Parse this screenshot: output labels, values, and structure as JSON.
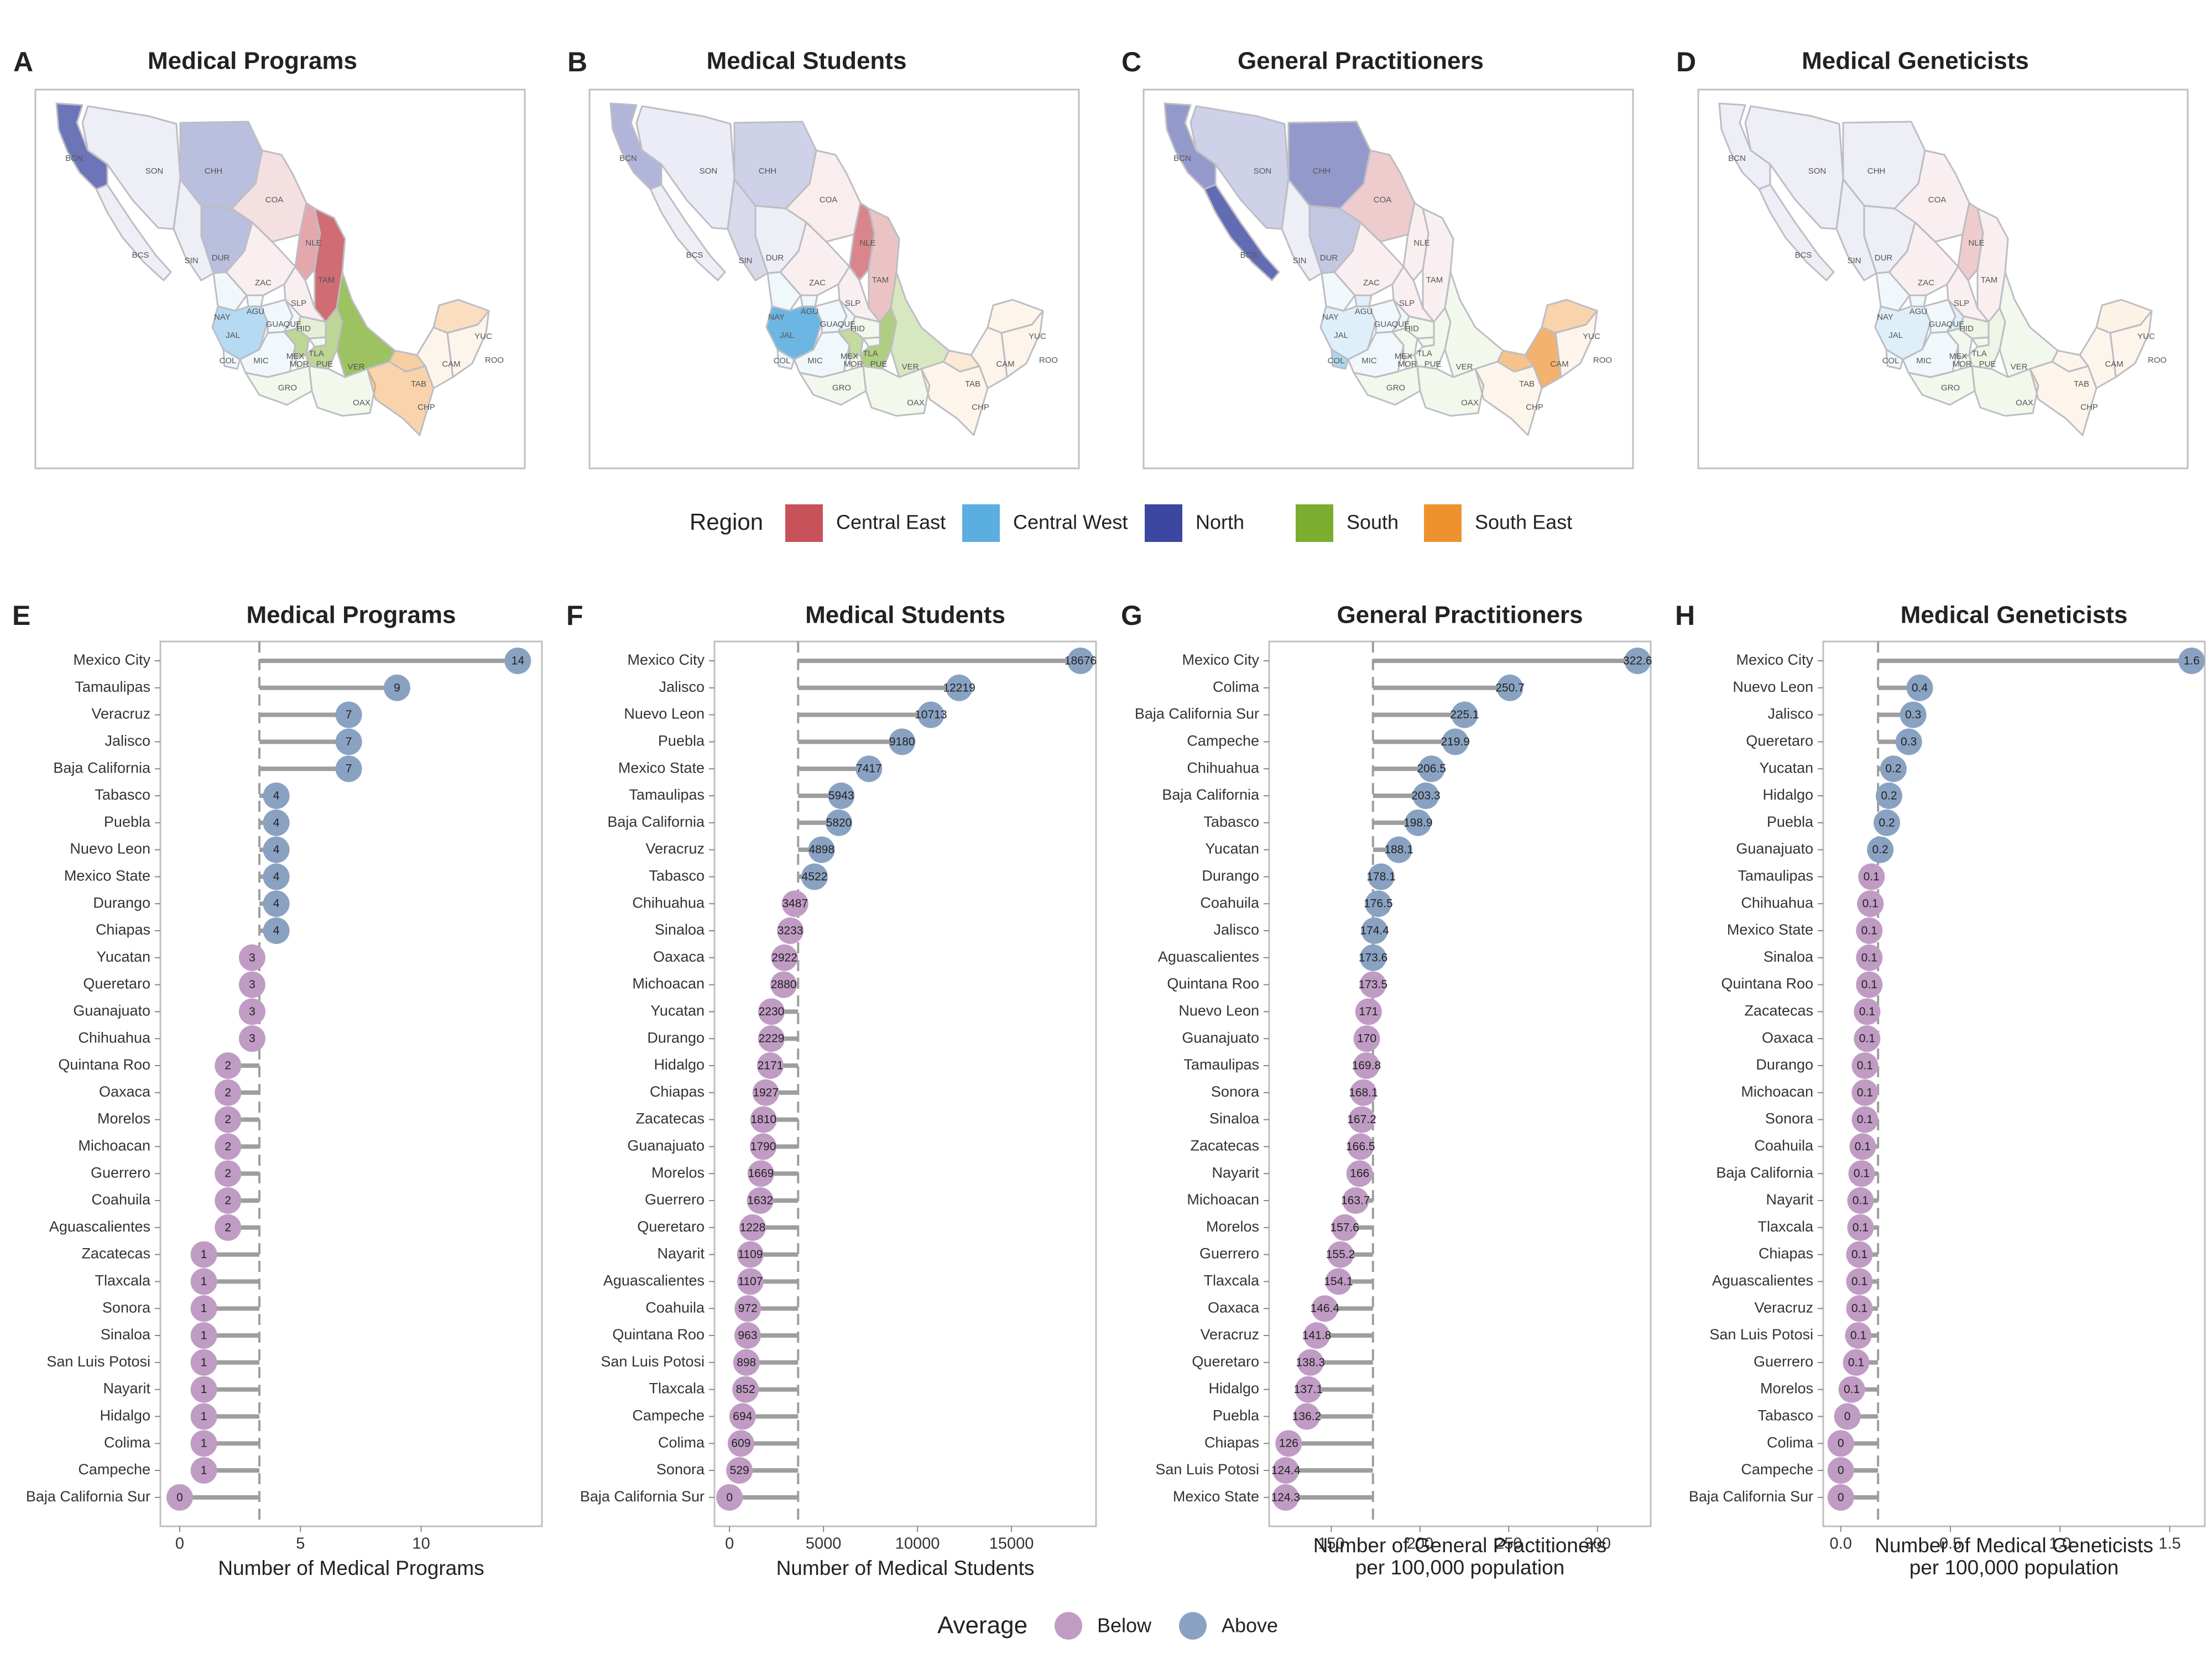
{
  "colors": {
    "central_east": "#C8525A",
    "central_west": "#5BAEE0",
    "north": "#3B47A0",
    "south": "#7BAE2E",
    "south_east": "#EE922F",
    "below": "#C09CC4",
    "above": "#8AA2C2",
    "stem": "#9E9E9E",
    "panel_border": "#BFBFBF"
  },
  "maps": [
    {
      "letter": "A",
      "title": "Medical Programs"
    },
    {
      "letter": "B",
      "title": "Medical Students"
    },
    {
      "letter": "C",
      "title": "General Practitioners"
    },
    {
      "letter": "D",
      "title": "Medical Geneticists"
    }
  ],
  "state_labels": [
    "BCN",
    "SON",
    "CHH",
    "COA",
    "NLE",
    "TAM",
    "BCS",
    "SIN",
    "DUR",
    "ZAC",
    "SLP",
    "NAY",
    "AGU",
    "JAL",
    "GUA",
    "QUE",
    "HID",
    "COL",
    "MIC",
    "MEX",
    "TLA",
    "MOR",
    "PUE",
    "VER",
    "GRO",
    "OAX",
    "TAB",
    "CAM",
    "YUC",
    "ROO",
    "CHP"
  ],
  "region_legend": {
    "title": "Region",
    "items": [
      {
        "label": "Central East",
        "color": "#C8525A"
      },
      {
        "label": "Central West",
        "color": "#5BAEE0"
      },
      {
        "label": "North",
        "color": "#3B47A0"
      },
      {
        "label": "South",
        "color": "#7BAE2E"
      },
      {
        "label": "South East",
        "color": "#EE922F"
      }
    ]
  },
  "average_legend": {
    "title": "Average",
    "items": [
      {
        "label": "Below",
        "color": "#C09CC4"
      },
      {
        "label": "Above",
        "color": "#8AA2C2"
      }
    ]
  },
  "chart_data": [
    {
      "type": "lollipop",
      "letter": "E",
      "title": "Medical Programs",
      "xlabel": [
        "Number of Medical Programs"
      ],
      "xlim": [
        -0.8,
        15
      ],
      "xticks": [
        0,
        5,
        10
      ],
      "average": 3.3,
      "categories": [
        "Mexico City",
        "Tamaulipas",
        "Veracruz",
        "Jalisco",
        "Baja California",
        "Tabasco",
        "Puebla",
        "Nuevo Leon",
        "Mexico State",
        "Durango",
        "Chiapas",
        "Yucatan",
        "Queretaro",
        "Guanajuato",
        "Chihuahua",
        "Quintana Roo",
        "Oaxaca",
        "Morelos",
        "Michoacan",
        "Guerrero",
        "Coahuila",
        "Aguascalientes",
        "Zacatecas",
        "Tlaxcala",
        "Sonora",
        "Sinaloa",
        "San Luis Potosi",
        "Nayarit",
        "Hidalgo",
        "Colima",
        "Campeche",
        "Baja California Sur"
      ],
      "values": [
        14,
        9,
        7,
        7,
        7,
        4,
        4,
        4,
        4,
        4,
        4,
        3,
        3,
        3,
        3,
        2,
        2,
        2,
        2,
        2,
        2,
        2,
        1,
        1,
        1,
        1,
        1,
        1,
        1,
        1,
        1,
        0
      ],
      "labels": [
        "14",
        "9",
        "7",
        "7",
        "7",
        "4",
        "4",
        "4",
        "4",
        "4",
        "4",
        "3",
        "3",
        "3",
        "3",
        "2",
        "2",
        "2",
        "2",
        "2",
        "2",
        "2",
        "1",
        "1",
        "1",
        "1",
        "1",
        "1",
        "1",
        "1",
        "1",
        "0"
      ]
    },
    {
      "type": "lollipop",
      "letter": "F",
      "title": "Medical Students",
      "xlabel": [
        "Number of Medical Students"
      ],
      "xlim": [
        -800,
        19500
      ],
      "xticks": [
        0,
        5000,
        10000,
        15000
      ],
      "average": 3650,
      "categories": [
        "Mexico City",
        "Jalisco",
        "Nuevo Leon",
        "Puebla",
        "Mexico State",
        "Tamaulipas",
        "Baja California",
        "Veracruz",
        "Tabasco",
        "Chihuahua",
        "Sinaloa",
        "Oaxaca",
        "Michoacan",
        "Yucatan",
        "Durango",
        "Hidalgo",
        "Chiapas",
        "Zacatecas",
        "Guanajuato",
        "Morelos",
        "Guerrero",
        "Queretaro",
        "Nayarit",
        "Aguascalientes",
        "Coahuila",
        "Quintana Roo",
        "San Luis Potosi",
        "Tlaxcala",
        "Campeche",
        "Colima",
        "Sonora",
        "Baja California Sur"
      ],
      "values": [
        18676,
        12219,
        10713,
        9180,
        7417,
        5943,
        5820,
        4898,
        4522,
        3487,
        3233,
        2922,
        2880,
        2230,
        2229,
        2171,
        1927,
        1810,
        1790,
        1669,
        1632,
        1228,
        1109,
        1107,
        972,
        963,
        898,
        852,
        694,
        609,
        529,
        0
      ],
      "labels": [
        "18676",
        "12219",
        "10713",
        "9180",
        "7417",
        "5943",
        "5820",
        "4898",
        "4522",
        "3487",
        "3233",
        "2922",
        "2880",
        "2230",
        "2229",
        "2171",
        "1927",
        "1810",
        "1790",
        "1669",
        "1632",
        "1228",
        "1109",
        "1107",
        "972",
        "963",
        "898",
        "852",
        "694",
        "609",
        "529",
        "0"
      ]
    },
    {
      "type": "lollipop",
      "letter": "G",
      "title": "General Practitioners",
      "xlabel": [
        "Number of General Practitioners",
        "per 100,000 population"
      ],
      "xlim": [
        115,
        330
      ],
      "xticks": [
        150,
        200,
        250,
        300
      ],
      "average": 173.5,
      "categories": [
        "Mexico City",
        "Colima",
        "Baja California Sur",
        "Campeche",
        "Chihuahua",
        "Baja California",
        "Tabasco",
        "Yucatan",
        "Durango",
        "Coahuila",
        "Jalisco",
        "Aguascalientes",
        "Quintana Roo",
        "Nuevo Leon",
        "Guanajuato",
        "Tamaulipas",
        "Sonora",
        "Sinaloa",
        "Zacatecas",
        "Nayarit",
        "Michoacan",
        "Morelos",
        "Guerrero",
        "Tlaxcala",
        "Oaxaca",
        "Veracruz",
        "Queretaro",
        "Hidalgo",
        "Puebla",
        "Chiapas",
        "San Luis Potosi",
        "Mexico State"
      ],
      "values": [
        322.6,
        250.7,
        225.1,
        219.9,
        206.5,
        203.3,
        198.9,
        188.1,
        178.1,
        176.5,
        174.4,
        173.6,
        173.5,
        171,
        170,
        169.8,
        168.1,
        167.2,
        166.5,
        166,
        163.7,
        157.6,
        155.2,
        154.1,
        146.4,
        141.8,
        138.3,
        137.1,
        136.2,
        126,
        124.4,
        124.3
      ],
      "labels": [
        "322.6",
        "250.7",
        "225.1",
        "219.9",
        "206.5",
        "203.3",
        "198.9",
        "188.1",
        "178.1",
        "176.5",
        "174.4",
        "173.6",
        "173.5",
        "171",
        "170",
        "169.8",
        "168.1",
        "167.2",
        "166.5",
        "166",
        "163.7",
        "157.6",
        "155.2",
        "154.1",
        "146.4",
        "141.8",
        "138.3",
        "137.1",
        "136.2",
        "126",
        "124.4",
        "124.3"
      ]
    },
    {
      "type": "lollipop",
      "letter": "H",
      "title": "Medical Geneticists",
      "xlabel": [
        "Number of Medical Geneticists",
        "per 100,000 population"
      ],
      "xlim": [
        -0.08,
        1.66
      ],
      "xticks": [
        0,
        0.5,
        1,
        1.5
      ],
      "xtick_labels": [
        "0.0",
        "0.5",
        "1.0",
        "1.5"
      ],
      "average": 0.17,
      "categories": [
        "Mexico City",
        "Nuevo Leon",
        "Jalisco",
        "Queretaro",
        "Yucatan",
        "Hidalgo",
        "Puebla",
        "Guanajuato",
        "Tamaulipas",
        "Chihuahua",
        "Mexico State",
        "Sinaloa",
        "Quintana Roo",
        "Zacatecas",
        "Oaxaca",
        "Durango",
        "Michoacan",
        "Sonora",
        "Coahuila",
        "Baja California",
        "Nayarit",
        "Tlaxcala",
        "Chiapas",
        "Aguascalientes",
        "Veracruz",
        "San Luis Potosi",
        "Guerrero",
        "Morelos",
        "Tabasco",
        "Colima",
        "Campeche",
        "Baja California Sur"
      ],
      "values": [
        1.6,
        0.36,
        0.33,
        0.31,
        0.24,
        0.22,
        0.21,
        0.18,
        0.14,
        0.135,
        0.13,
        0.13,
        0.13,
        0.12,
        0.12,
        0.11,
        0.11,
        0.11,
        0.1,
        0.095,
        0.09,
        0.09,
        0.085,
        0.085,
        0.085,
        0.08,
        0.07,
        0.05,
        0.03,
        0,
        0,
        0
      ],
      "labels": [
        "1.6",
        "0.4",
        "0.3",
        "0.3",
        "0.2",
        "0.2",
        "0.2",
        "0.2",
        "0.1",
        "0.1",
        "0.1",
        "0.1",
        "0.1",
        "0.1",
        "0.1",
        "0.1",
        "0.1",
        "0.1",
        "0.1",
        "0.1",
        "0.1",
        "0.1",
        "0.1",
        "0.1",
        "0.1",
        "0.1",
        "0.1",
        "0.1",
        "0",
        "0",
        "0",
        "0"
      ]
    }
  ]
}
